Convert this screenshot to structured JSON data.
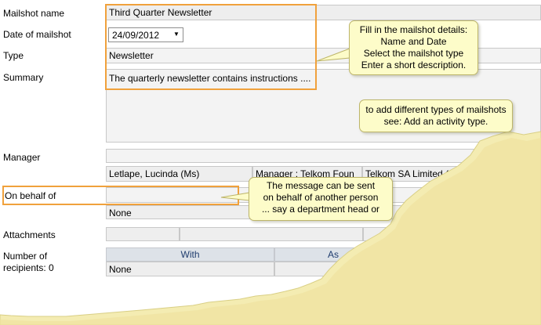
{
  "labels": {
    "mailshot_name": "Mailshot name",
    "date_of_mailshot": "Date of mailshot",
    "type": "Type",
    "summary": "Summary",
    "manager": "Manager",
    "on_behalf_of": "On behalf of",
    "attachments": "Attachments",
    "number_of": "Number of",
    "recipients": "recipients: 0"
  },
  "fields": {
    "mailshot_name_value": "Third Quarter Newsletter",
    "date_value": "24/09/2012",
    "type_value": "Newsletter",
    "summary_value": "The quarterly newsletter contains instructions ....",
    "manager_name": "Letlape, Lucinda (Ms)",
    "manager_role": "Manager : Telkom Foun",
    "manager_company": "Telkom SA Limited (Clos",
    "on_behalf_value": "None",
    "recipients_value": "None"
  },
  "recipients_table": {
    "headers": [
      "With",
      "As"
    ]
  },
  "callouts": {
    "details": [
      "Fill in the mailshot details:",
      "Name and Date",
      "Select the mailshot type",
      "Enter a short description."
    ],
    "types": [
      "to add different types of mailshots",
      "see: Add an activity type."
    ],
    "behalf": [
      "The message can be sent",
      "on behalf of another person",
      "... say a department head or"
    ]
  },
  "icons": {
    "date_dropdown": "chevron-down-icon"
  },
  "colors": {
    "highlight": "#f0a13c",
    "callout_bg": "#fdfcc9",
    "torn_edge": "#f4ecb2"
  }
}
